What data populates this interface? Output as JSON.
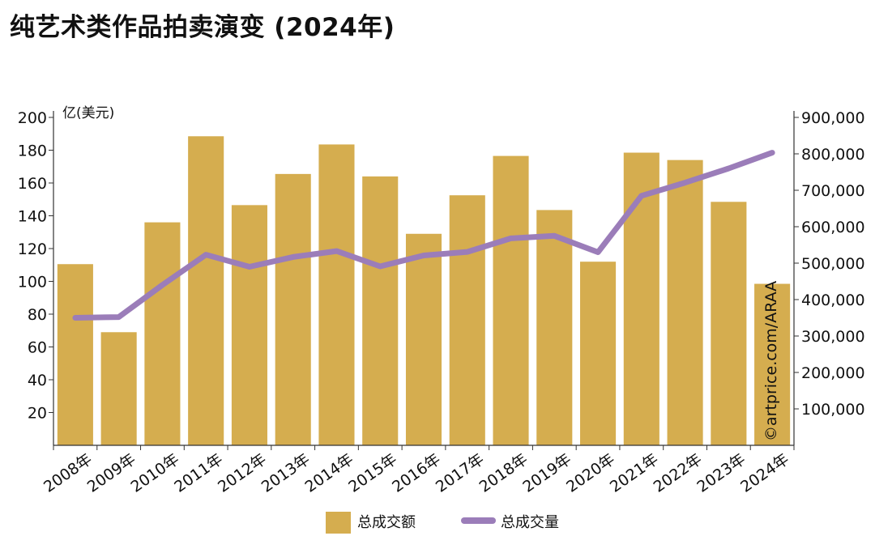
{
  "page": {
    "title": "纯艺术类作品拍卖演变 (2024年)"
  },
  "credit": "©artprice.com/ARAA",
  "colors": {
    "bar": "#D5AD4F",
    "line": "#9B7DB9",
    "axis": "#333333"
  },
  "chart_data": {
    "type": "bar+line",
    "title": "纯艺术类作品拍卖演变 (2024年)",
    "categories": [
      "2008年",
      "2009年",
      "2010年",
      "2011年",
      "2012年",
      "2013年",
      "2014年",
      "2015年",
      "2016年",
      "2017年",
      "2018年",
      "2019年",
      "2020年",
      "2021年",
      "2022年",
      "2023年",
      "2024年"
    ],
    "series": [
      {
        "name": "总成交额",
        "type": "bar",
        "axis": "left",
        "values": [
          110.5,
          69,
          136,
          188.5,
          146.5,
          165.5,
          183.5,
          164,
          129,
          152.5,
          176.5,
          143.5,
          112,
          178.5,
          174,
          148.5,
          98.5
        ]
      },
      {
        "name": "总成交量",
        "type": "line",
        "axis": "right",
        "values": [
          350000,
          352000,
          440000,
          523000,
          490000,
          517000,
          533000,
          491000,
          521000,
          531000,
          568000,
          575000,
          530000,
          685000,
          721000,
          760000,
          803000
        ]
      }
    ],
    "y_left": {
      "unit": "亿(美元)",
      "min": 0,
      "max": 200,
      "ticks": [
        20,
        40,
        60,
        80,
        100,
        120,
        140,
        160,
        180,
        200
      ]
    },
    "y_right": {
      "min": 0,
      "max": 900000,
      "ticks": [
        100000,
        200000,
        300000,
        400000,
        500000,
        600000,
        700000,
        800000,
        900000
      ],
      "tick_labels": [
        "100,000",
        "200,000",
        "300,000",
        "400,000",
        "500,000",
        "600,000",
        "700,000",
        "800,000",
        "900,000"
      ]
    },
    "legend": {
      "position": "bottom",
      "items": [
        {
          "label": "总成交额",
          "marker": "bar"
        },
        {
          "label": "总成交量",
          "marker": "line"
        }
      ]
    }
  }
}
